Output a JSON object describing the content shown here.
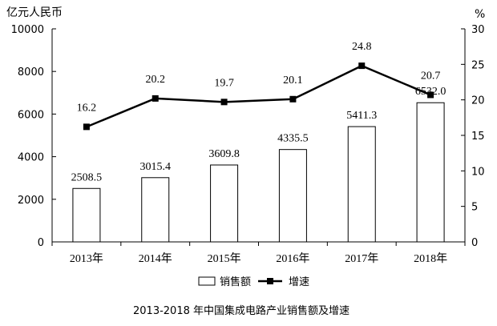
{
  "chart_data": {
    "type": "bar+line",
    "title": "2013-2018 年中国集成电路产业销售额及增速",
    "categories": [
      "2013年",
      "2014年",
      "2015年",
      "2016年",
      "2017年",
      "2018年"
    ],
    "series": [
      {
        "name": "销售额",
        "type": "bar",
        "axis": "left",
        "values": [
          2508.5,
          3015.4,
          3609.8,
          4335.5,
          5411.3,
          6532.0
        ],
        "labels": [
          "2508.5",
          "3015.4",
          "3609.8",
          "4335.5",
          "5411.3",
          "6532.0"
        ]
      },
      {
        "name": "增速",
        "type": "line",
        "axis": "right",
        "values": [
          16.2,
          20.2,
          19.7,
          20.1,
          24.8,
          20.7
        ],
        "labels": [
          "16.2",
          "20.2",
          "19.7",
          "20.1",
          "24.8",
          "20.7"
        ]
      }
    ],
    "y_left": {
      "label": "亿元人民币",
      "range": [
        0,
        10000
      ],
      "ticks": [
        "0",
        "2000",
        "4000",
        "6000",
        "8000",
        "10000"
      ]
    },
    "y_right": {
      "label": "%",
      "range": [
        0,
        30
      ],
      "ticks": [
        "0",
        "5",
        "10",
        "15",
        "20",
        "25",
        "30"
      ]
    },
    "grid": false,
    "legend": "bottom-center",
    "colors": {
      "bar_fill": "#ffffff",
      "bar_stroke": "#000000",
      "line": "#000000"
    }
  }
}
